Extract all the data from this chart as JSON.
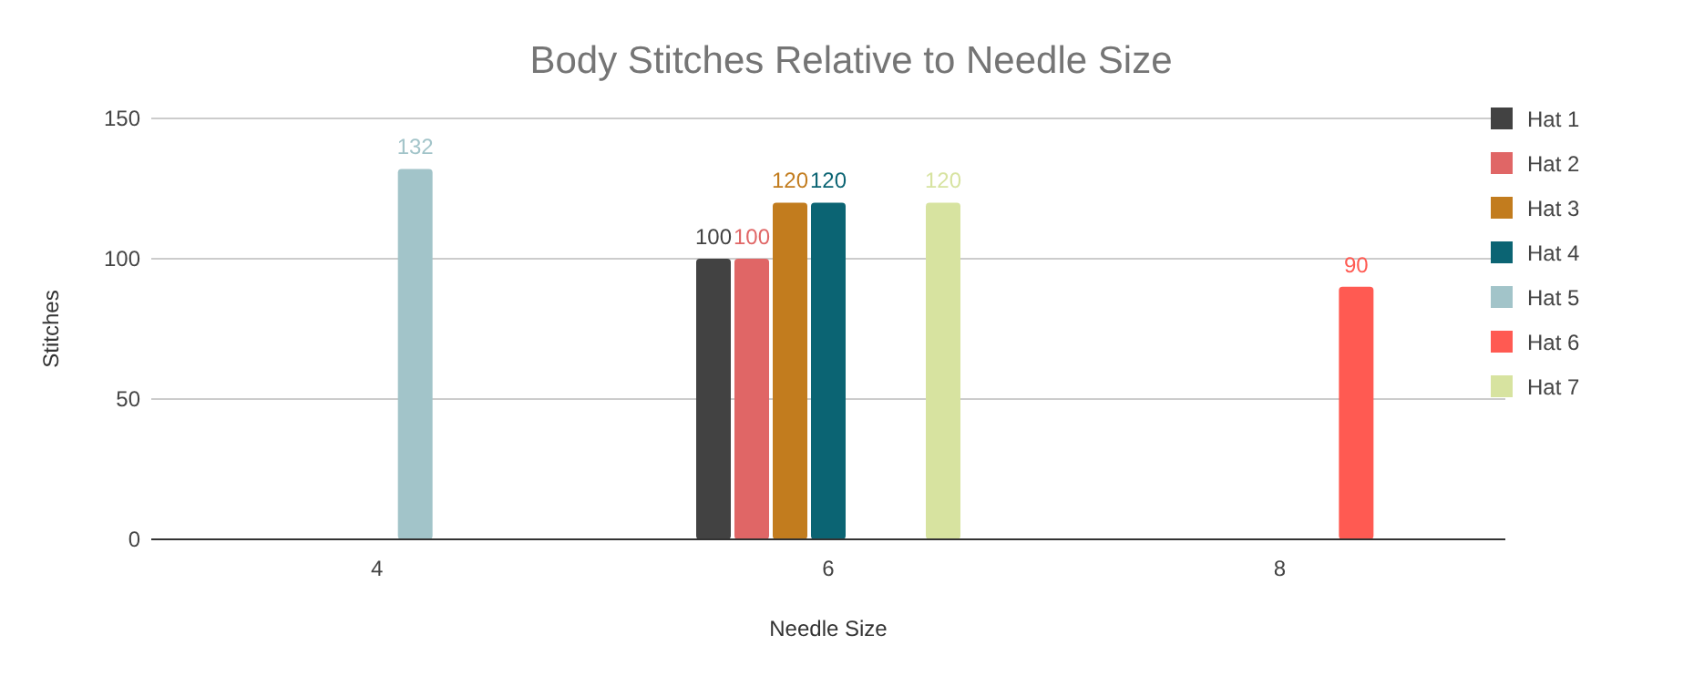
{
  "chart_data": {
    "type": "bar",
    "title": "Body Stitches Relative to Needle Size",
    "xlabel": "Needle Size",
    "ylabel": "Stitches",
    "categories": [
      "4",
      "6",
      "8"
    ],
    "series": [
      {
        "name": "Hat 1",
        "color": "#424242",
        "values": [
          null,
          100,
          null
        ]
      },
      {
        "name": "Hat 2",
        "color": "#e06666",
        "values": [
          null,
          100,
          null
        ]
      },
      {
        "name": "Hat 3",
        "color": "#c27c1e",
        "values": [
          null,
          120,
          null
        ]
      },
      {
        "name": "Hat 4",
        "color": "#0b6473",
        "values": [
          null,
          120,
          null
        ]
      },
      {
        "name": "Hat 5",
        "color": "#a2c4c9",
        "values": [
          132,
          null,
          null
        ]
      },
      {
        "name": "Hat 6",
        "color": "#ff5a52",
        "values": [
          null,
          null,
          90
        ]
      },
      {
        "name": "Hat 7",
        "color": "#d7e3a0",
        "values": [
          null,
          120,
          null
        ]
      }
    ],
    "ylim": [
      0,
      150
    ],
    "yticks": [
      0,
      50,
      100,
      150
    ],
    "grid": "y",
    "legend": "right",
    "data_labels": true
  }
}
